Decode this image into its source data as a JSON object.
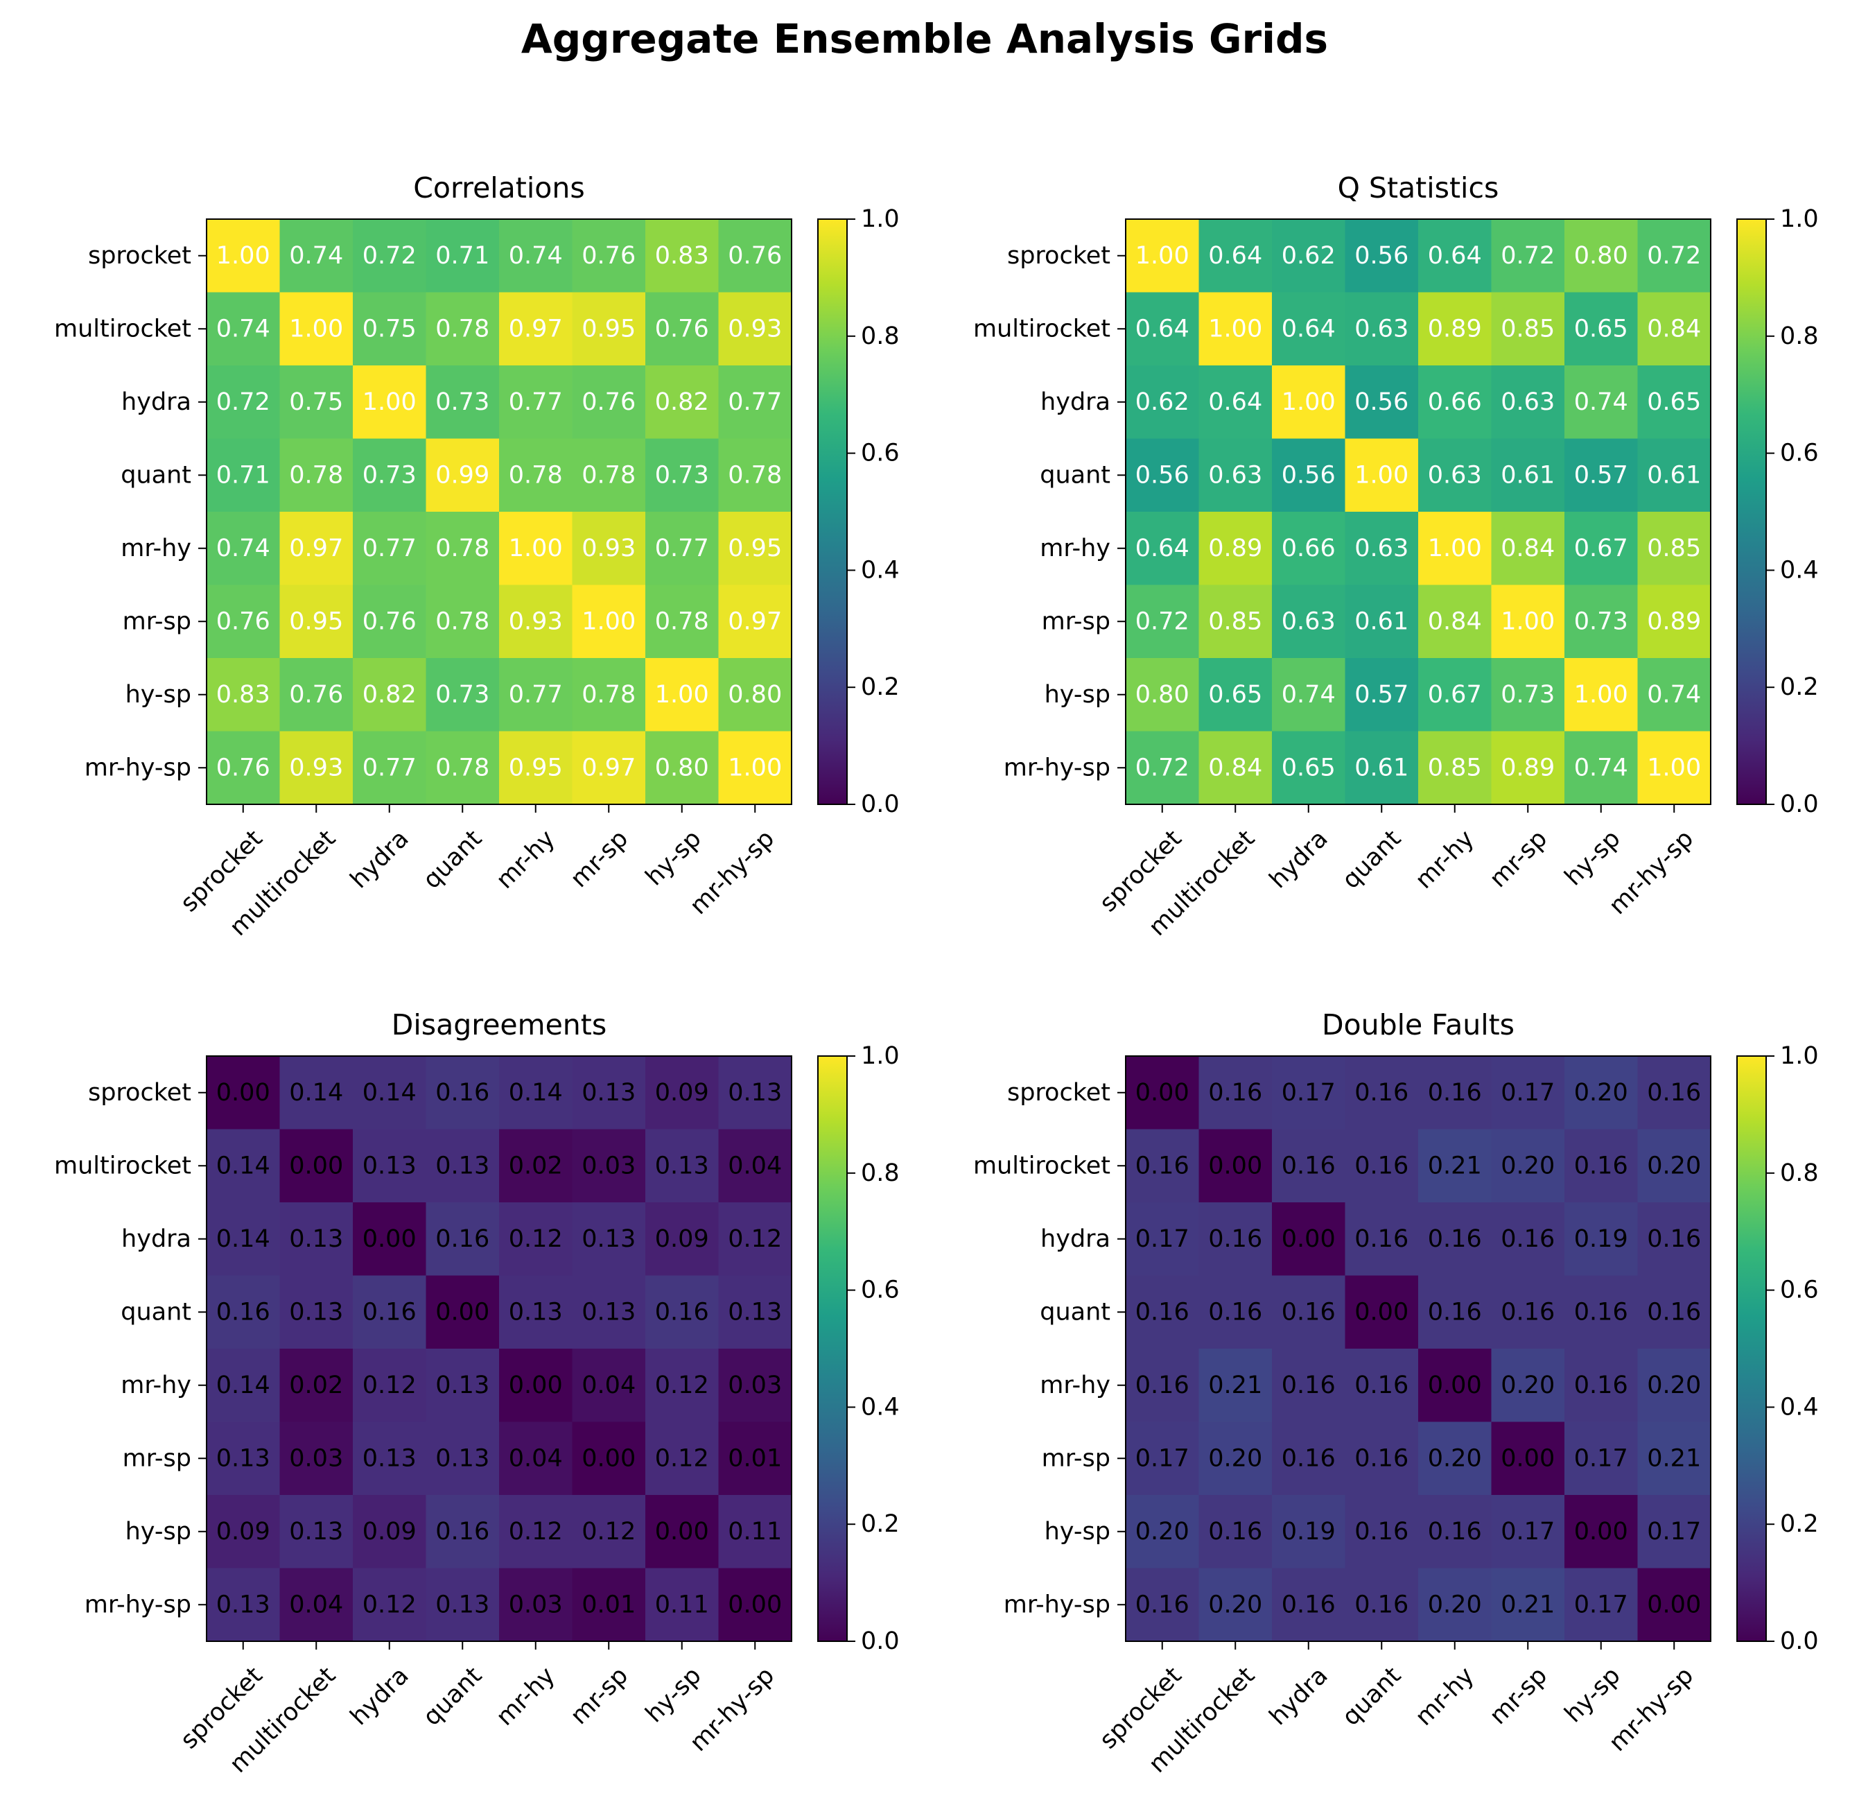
{
  "title": "Aggregate Ensemble Analysis Grids",
  "labels": [
    "sprocket",
    "multirocket",
    "hydra",
    "quant",
    "mr-hy",
    "mr-sp",
    "hy-sp",
    "mr-hy-sp"
  ],
  "colormap": {
    "name": "viridis",
    "stops": [
      "#440154",
      "#482878",
      "#3e4989",
      "#31688e",
      "#26828e",
      "#1f9e89",
      "#35b779",
      "#6ece58",
      "#b5de2b",
      "#fde725"
    ]
  },
  "chart_data": [
    {
      "type": "heatmap",
      "title": "Correlations",
      "colorbar": {
        "range": [
          0,
          1
        ],
        "ticks": [
          "0.0",
          "0.2",
          "0.4",
          "0.6",
          "0.8",
          "1.0"
        ]
      },
      "matrix": [
        [
          1.0,
          0.74,
          0.72,
          0.71,
          0.74,
          0.76,
          0.83,
          0.76
        ],
        [
          0.74,
          1.0,
          0.75,
          0.78,
          0.97,
          0.95,
          0.76,
          0.93
        ],
        [
          0.72,
          0.75,
          1.0,
          0.73,
          0.77,
          0.76,
          0.82,
          0.77
        ],
        [
          0.71,
          0.78,
          0.73,
          0.99,
          0.78,
          0.78,
          0.73,
          0.78
        ],
        [
          0.74,
          0.97,
          0.77,
          0.78,
          1.0,
          0.93,
          0.77,
          0.95
        ],
        [
          0.76,
          0.95,
          0.76,
          0.78,
          0.93,
          1.0,
          0.78,
          0.97
        ],
        [
          0.83,
          0.76,
          0.82,
          0.73,
          0.77,
          0.78,
          1.0,
          0.8
        ],
        [
          0.76,
          0.93,
          0.77,
          0.78,
          0.95,
          0.97,
          0.8,
          1.0
        ]
      ],
      "annotation_color": "#ffffff"
    },
    {
      "type": "heatmap",
      "title": "Q Statistics",
      "colorbar": {
        "range": [
          0,
          1
        ],
        "ticks": [
          "0.0",
          "0.2",
          "0.4",
          "0.6",
          "0.8",
          "1.0"
        ]
      },
      "matrix": [
        [
          1.0,
          0.64,
          0.62,
          0.56,
          0.64,
          0.72,
          0.8,
          0.72
        ],
        [
          0.64,
          1.0,
          0.64,
          0.63,
          0.89,
          0.85,
          0.65,
          0.84
        ],
        [
          0.62,
          0.64,
          1.0,
          0.56,
          0.66,
          0.63,
          0.74,
          0.65
        ],
        [
          0.56,
          0.63,
          0.56,
          1.0,
          0.63,
          0.61,
          0.57,
          0.61
        ],
        [
          0.64,
          0.89,
          0.66,
          0.63,
          1.0,
          0.84,
          0.67,
          0.85
        ],
        [
          0.72,
          0.85,
          0.63,
          0.61,
          0.84,
          1.0,
          0.73,
          0.89
        ],
        [
          0.8,
          0.65,
          0.74,
          0.57,
          0.67,
          0.73,
          1.0,
          0.74
        ],
        [
          0.72,
          0.84,
          0.65,
          0.61,
          0.85,
          0.89,
          0.74,
          1.0
        ]
      ],
      "annotation_color": "#ffffff"
    },
    {
      "type": "heatmap",
      "title": "Disagreements",
      "colorbar": {
        "range": [
          0,
          1
        ],
        "ticks": [
          "0.0",
          "0.2",
          "0.4",
          "0.6",
          "0.8",
          "1.0"
        ]
      },
      "matrix": [
        [
          0.0,
          0.14,
          0.14,
          0.16,
          0.14,
          0.13,
          0.09,
          0.13
        ],
        [
          0.14,
          0.0,
          0.13,
          0.13,
          0.02,
          0.03,
          0.13,
          0.04
        ],
        [
          0.14,
          0.13,
          0.0,
          0.16,
          0.12,
          0.13,
          0.09,
          0.12
        ],
        [
          0.16,
          0.13,
          0.16,
          0.0,
          0.13,
          0.13,
          0.16,
          0.13
        ],
        [
          0.14,
          0.02,
          0.12,
          0.13,
          0.0,
          0.04,
          0.12,
          0.03
        ],
        [
          0.13,
          0.03,
          0.13,
          0.13,
          0.04,
          0.0,
          0.12,
          0.01
        ],
        [
          0.09,
          0.13,
          0.09,
          0.16,
          0.12,
          0.12,
          0.0,
          0.11
        ],
        [
          0.13,
          0.04,
          0.12,
          0.13,
          0.03,
          0.01,
          0.11,
          0.0
        ]
      ],
      "annotation_color": "#000000"
    },
    {
      "type": "heatmap",
      "title": "Double Faults",
      "colorbar": {
        "range": [
          0,
          1
        ],
        "ticks": [
          "0.0",
          "0.2",
          "0.4",
          "0.6",
          "0.8",
          "1.0"
        ]
      },
      "matrix": [
        [
          0.0,
          0.16,
          0.17,
          0.16,
          0.16,
          0.17,
          0.2,
          0.16
        ],
        [
          0.16,
          0.0,
          0.16,
          0.16,
          0.21,
          0.2,
          0.16,
          0.2
        ],
        [
          0.17,
          0.16,
          0.0,
          0.16,
          0.16,
          0.16,
          0.19,
          0.16
        ],
        [
          0.16,
          0.16,
          0.16,
          0.0,
          0.16,
          0.16,
          0.16,
          0.16
        ],
        [
          0.16,
          0.21,
          0.16,
          0.16,
          0.0,
          0.2,
          0.16,
          0.2
        ],
        [
          0.17,
          0.2,
          0.16,
          0.16,
          0.2,
          0.0,
          0.17,
          0.21
        ],
        [
          0.2,
          0.16,
          0.19,
          0.16,
          0.16,
          0.17,
          0.0,
          0.17
        ],
        [
          0.16,
          0.2,
          0.16,
          0.16,
          0.2,
          0.21,
          0.17,
          0.0
        ]
      ],
      "annotation_color": "#000000"
    }
  ]
}
